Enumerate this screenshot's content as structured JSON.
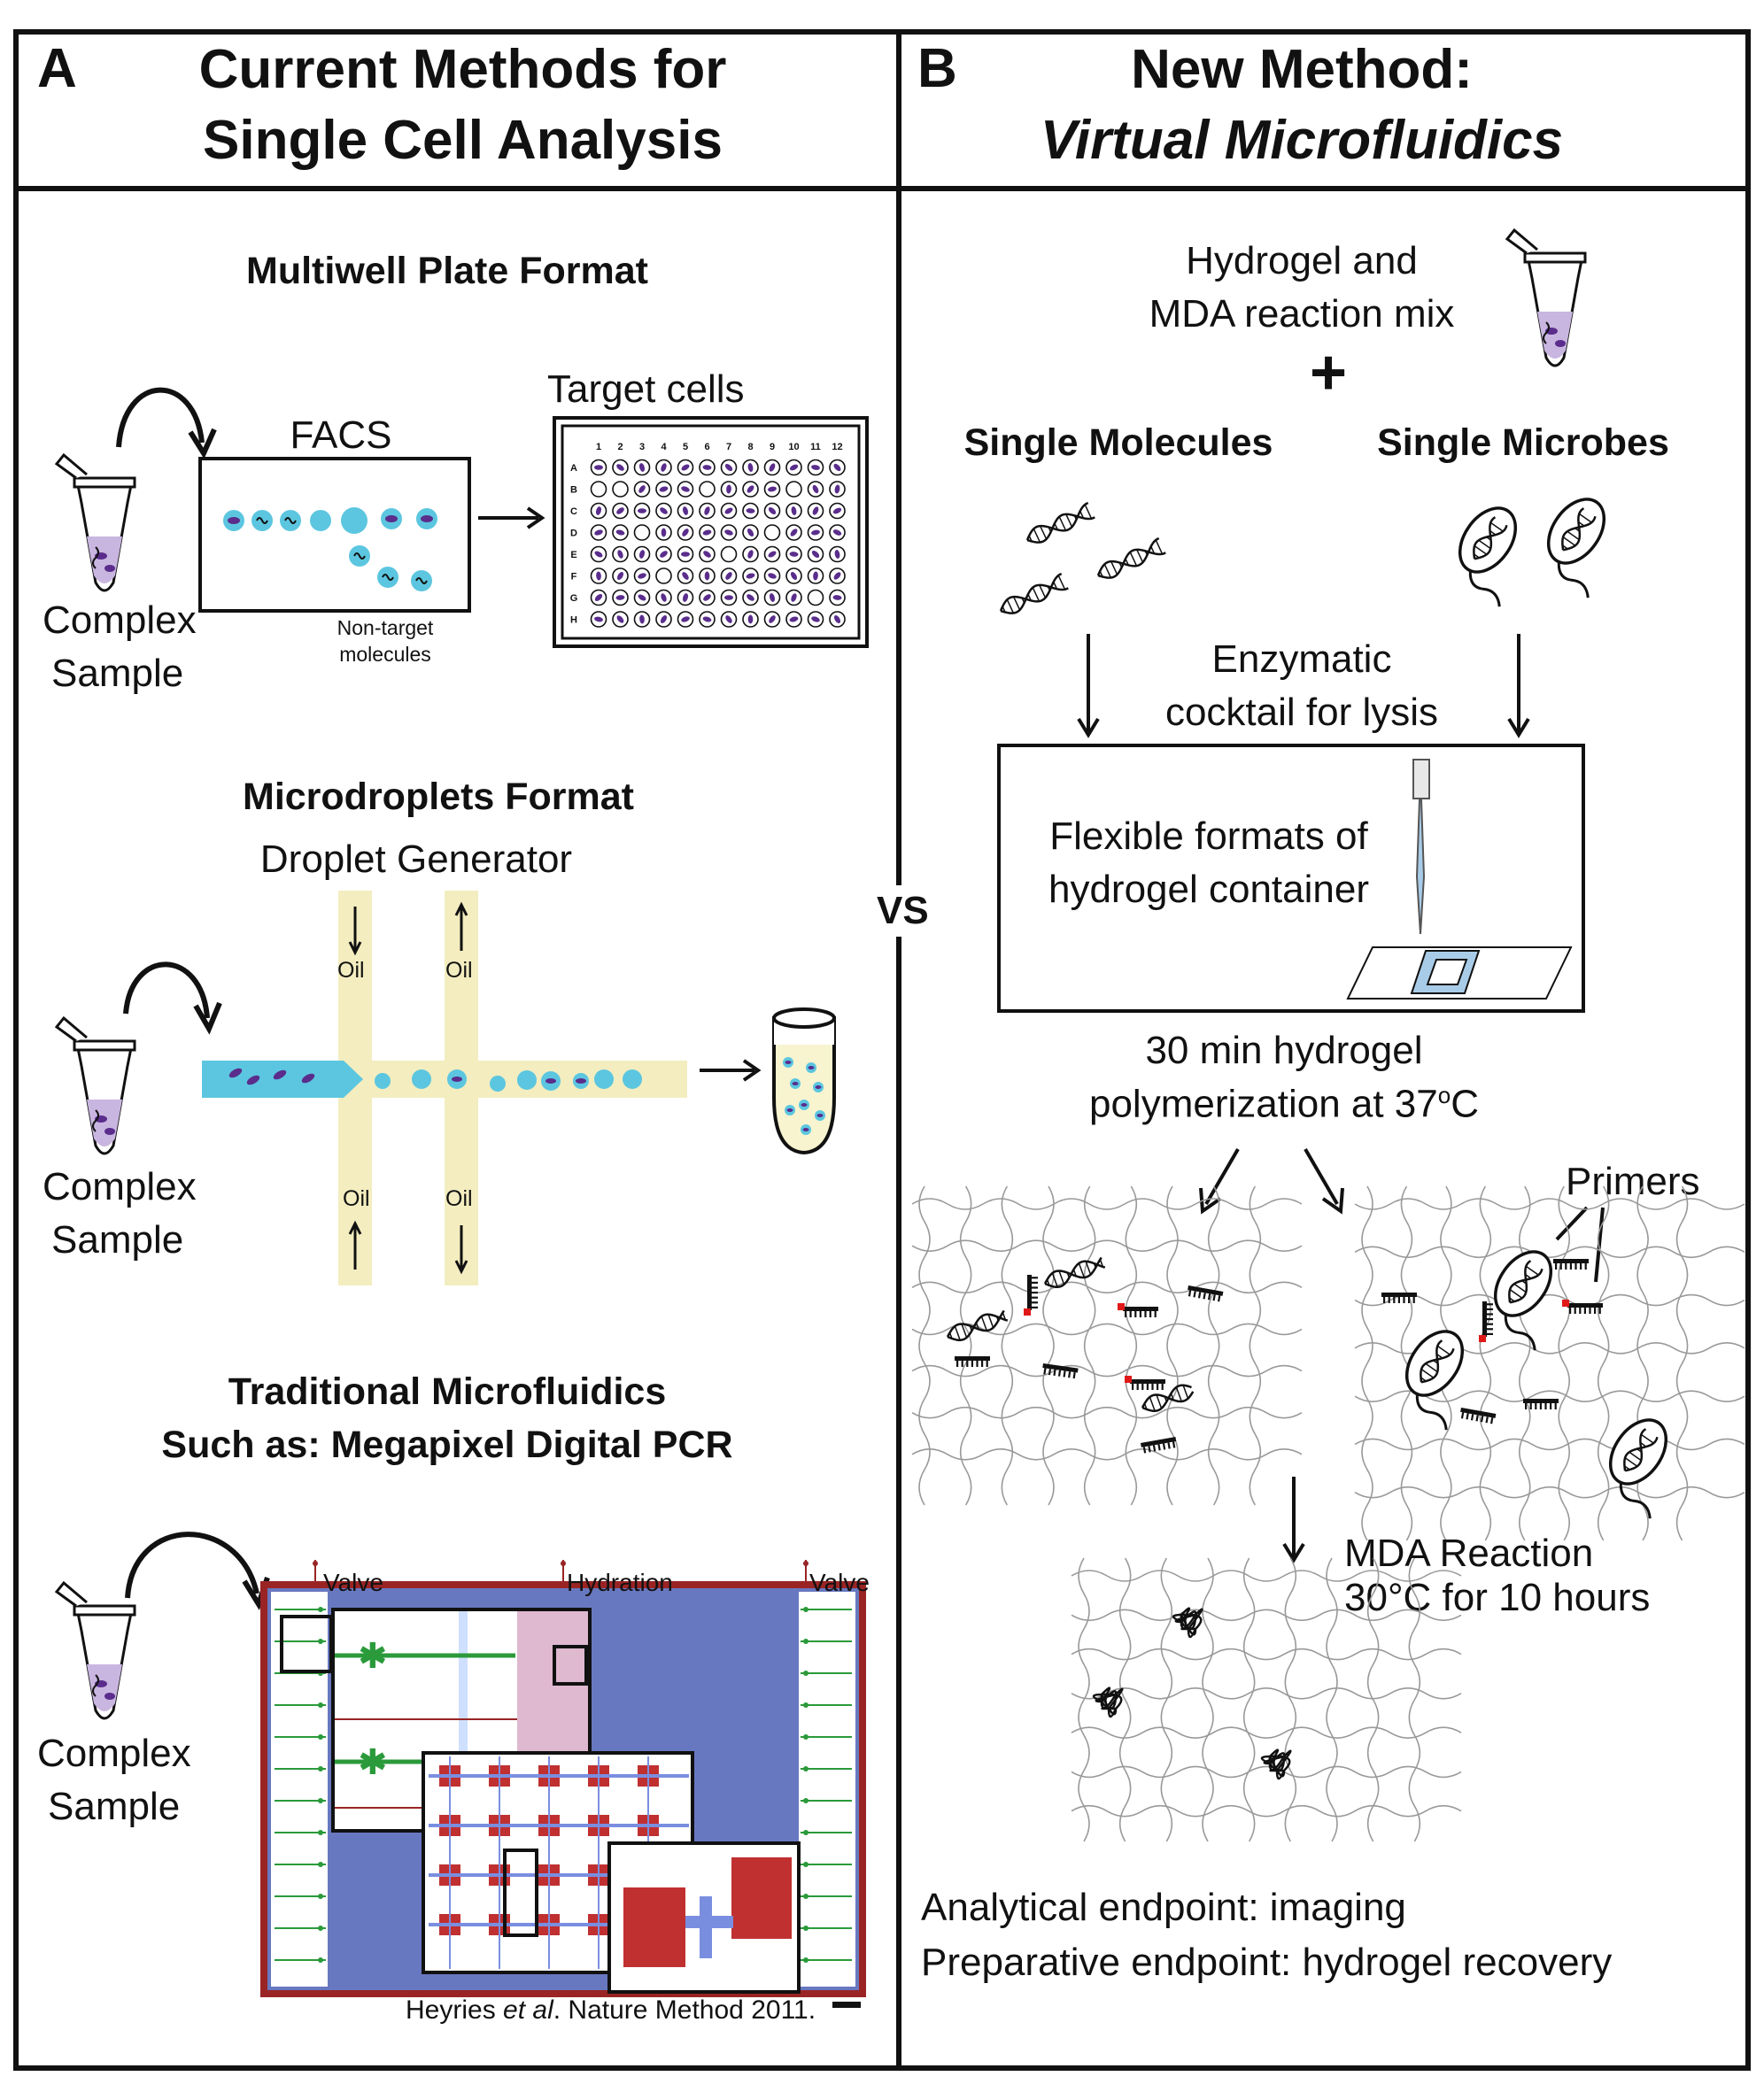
{
  "panel_a": {
    "letter": "A",
    "title_line1": "Current Methods for",
    "title_line2": "Single Cell Analysis",
    "multiwell": {
      "title": "Multiwell Plate Format",
      "facs_label": "FACS",
      "target_label": "Target cells",
      "nontarget_line1": "Non-target",
      "nontarget_line2": "molecules",
      "sample_line1": "Complex",
      "sample_line2": "Sample",
      "columns": [
        "1",
        "2",
        "3",
        "4",
        "5",
        "6",
        "7",
        "8",
        "9",
        "10",
        "11",
        "12"
      ],
      "rows": [
        "A",
        "B",
        "C",
        "D",
        "E",
        "F",
        "G",
        "H"
      ]
    },
    "microdroplets": {
      "title": "Microdroplets Format",
      "generator_label": "Droplet Generator",
      "oil": "Oil",
      "sample_line1": "Complex",
      "sample_line2": "Sample"
    },
    "microfluidics": {
      "title_line1": "Traditional Microfluidics",
      "title_line2": "Such as: Megapixel Digital PCR",
      "valve_left": "Valve",
      "hydration": "Hydration",
      "valve_right": "Valve",
      "citation_pre": "Heyries ",
      "citation_italic": "et al",
      "citation_post": ". Nature Method 2011.",
      "sample_line1": "Complex",
      "sample_line2": "Sample"
    }
  },
  "vs_label": "VS",
  "panel_b": {
    "letter": "B",
    "title_line1": "New Method:",
    "title_line2": "Virtual Microfluidics",
    "hydrogel_line1": "Hydrogel and",
    "hydrogel_line2": "MDA reaction mix",
    "plus": "+",
    "single_molecules": "Single Molecules",
    "single_microbes": "Single Microbes",
    "enzymatic_line1": "Enzymatic",
    "enzymatic_line2": "cocktail for lysis",
    "flexible_line1": "Flexible formats of",
    "flexible_line2": "hydrogel container",
    "polymer_line1": "30 min hydrogel",
    "polymer_line2_pre": "polymerization at 37",
    "polymer_sup": "o",
    "polymer_line2_post": "C",
    "primers": "Primers",
    "mda_line1": "MDA Reaction",
    "mda_line2": "30°C for 10 hours",
    "endpoint1": "Analytical endpoint: imaging",
    "endpoint2": "Preparative endpoint: hydrogel recovery"
  },
  "colors": {
    "droplet_cyan": "#5cc6e0",
    "cell_purple": "#5a2d8c",
    "oil_channel": "#f3edc0",
    "chip_blue": "#6878c0",
    "chip_border": "#9a2424",
    "primer_red": "#e01818"
  }
}
